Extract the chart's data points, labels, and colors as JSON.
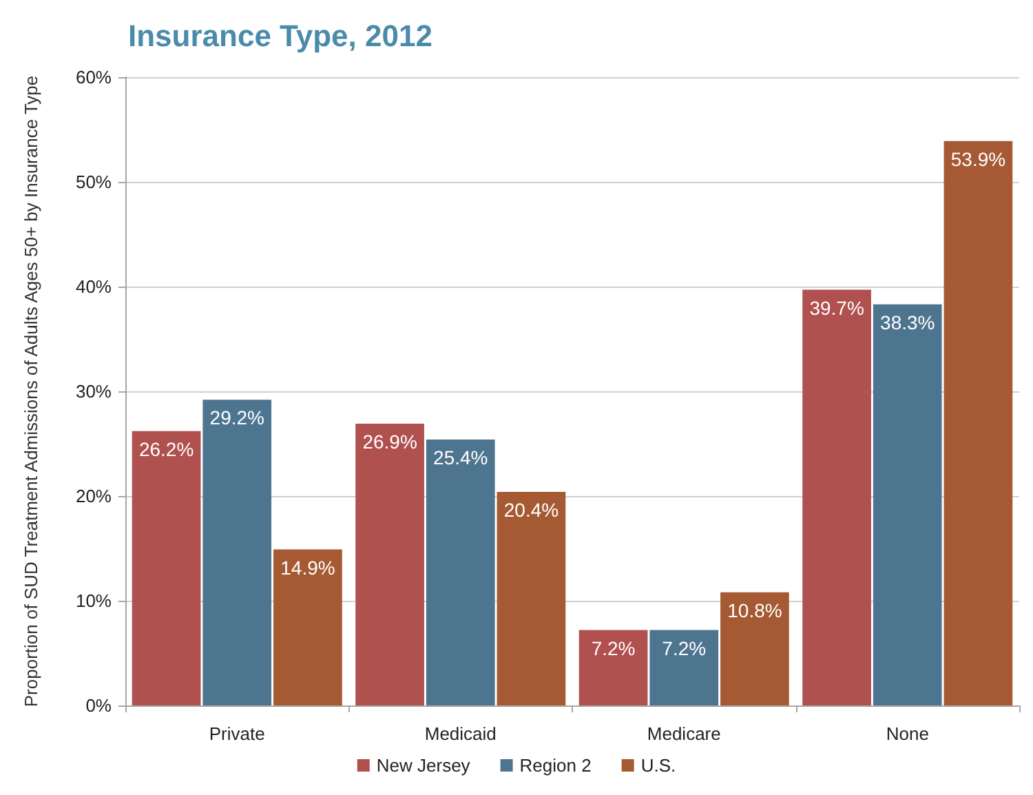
{
  "chart_data": {
    "type": "bar",
    "title": "Insurance Type, 2012",
    "ylabel": "Proportion of SUD Treatment Admissions of Adults Ages 50+ by Insurance Type",
    "categories": [
      "Private",
      "Medicaid",
      "Medicare",
      "None"
    ],
    "series": [
      {
        "name": "New Jersey",
        "color": "#b0504f",
        "values": [
          26.2,
          26.9,
          7.2,
          39.7
        ],
        "value_labels": [
          "26.2%",
          "26.9%",
          "7.2%",
          "39.7%"
        ]
      },
      {
        "name": "Region 2",
        "color": "#4e7590",
        "values": [
          29.2,
          25.4,
          7.2,
          38.3
        ],
        "value_labels": [
          "29.2%",
          "25.4%",
          "7.2%",
          "38.3%"
        ]
      },
      {
        "name": "U.S.",
        "color": "#a55a33",
        "values": [
          14.9,
          20.4,
          10.8,
          53.9
        ],
        "value_labels": [
          "14.9%",
          "20.4%",
          "10.8%",
          "53.9%"
        ]
      }
    ],
    "ylim": [
      0,
      60
    ],
    "yticks": [
      {
        "value": 0,
        "label": "0%"
      },
      {
        "value": 10,
        "label": "10%"
      },
      {
        "value": 20,
        "label": "20%"
      },
      {
        "value": 30,
        "label": "30%"
      },
      {
        "value": 40,
        "label": "40%"
      },
      {
        "value": 50,
        "label": "50%"
      },
      {
        "value": 60,
        "label": "60%"
      }
    ],
    "grid": "y",
    "legend": "bottom"
  }
}
